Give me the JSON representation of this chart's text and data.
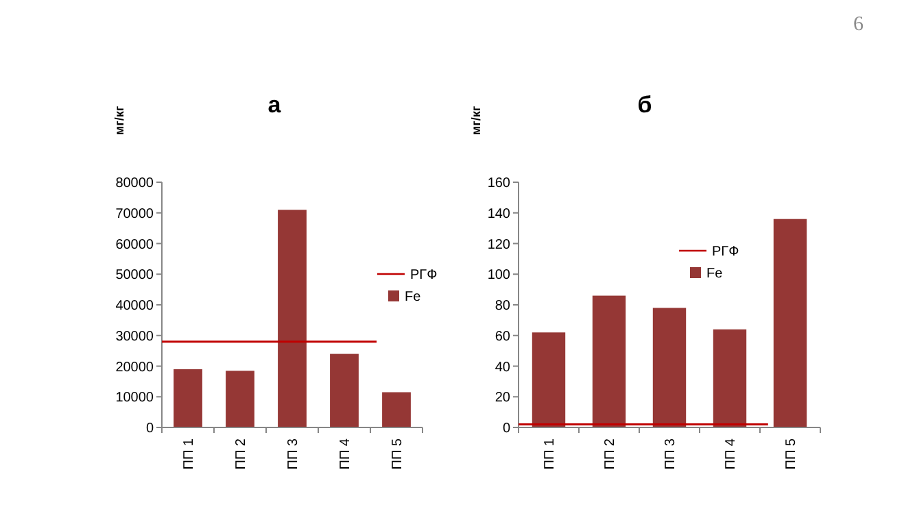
{
  "chart_data": [
    {
      "type": "bar",
      "title": "а",
      "ylabel": "мг/кг",
      "categories": [
        "ПП 1",
        "ПП 2",
        "ПП 3",
        "ПП 4",
        "ПП 5"
      ],
      "series": [
        {
          "name": "Fe",
          "color": "#953735",
          "values": [
            19000,
            18500,
            71000,
            24000,
            11500
          ]
        }
      ],
      "ylim": [
        0,
        80000
      ],
      "yticks": [
        0,
        10000,
        20000,
        30000,
        40000,
        50000,
        60000,
        70000,
        80000
      ],
      "ref_lines": [
        {
          "axis": "y",
          "value": 28000,
          "label": "РГФ",
          "color": "#c00000"
        }
      ],
      "legend": "right",
      "grid": false,
      "annotations": [
        "6"
      ]
    },
    {
      "type": "bar",
      "title": "б",
      "ylabel": "мг/кг",
      "categories": [
        "ПП 1",
        "ПП 2",
        "ПП 3",
        "ПП 4",
        "ПП 5"
      ],
      "series": [
        {
          "name": "Fe",
          "color": "#953735",
          "values": [
            62,
            86,
            78,
            64,
            136
          ]
        }
      ],
      "ylim": [
        0,
        160
      ],
      "yticks": [
        0,
        20,
        40,
        60,
        80,
        100,
        120,
        140,
        160
      ],
      "ref_lines": [
        {
          "axis": "y",
          "value": 2,
          "label": "РГФ",
          "color": "#c00000"
        }
      ],
      "legend": "right",
      "grid": false
    }
  ]
}
